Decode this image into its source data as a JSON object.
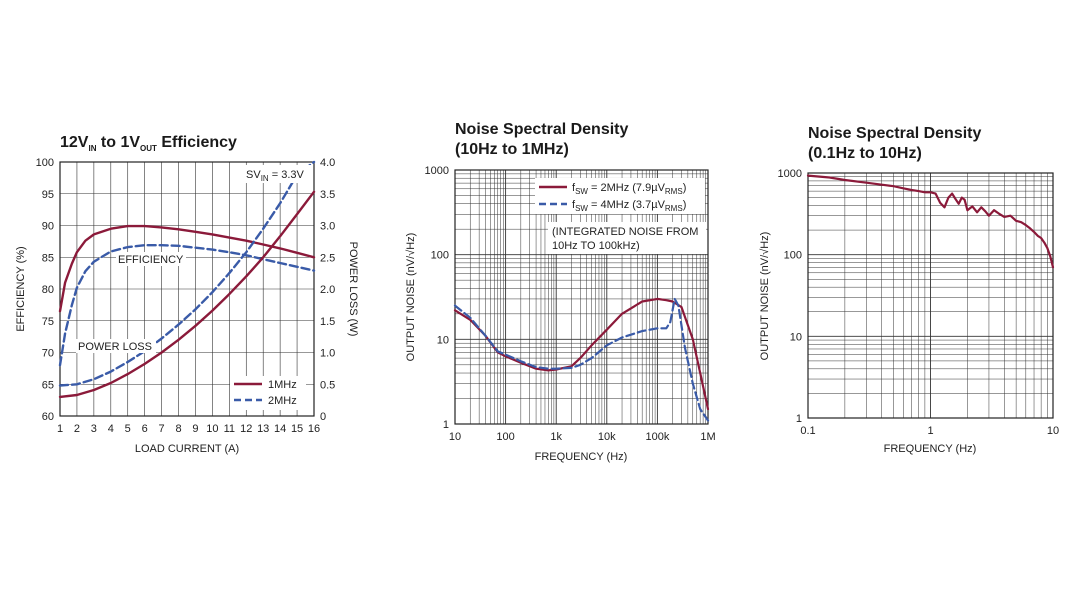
{
  "chart_data": [
    {
      "type": "line",
      "title": {
        "main": "12V",
        "sub_in": "IN",
        "mid": " to 1V",
        "sub_out": "OUT",
        "end": " Efficiency"
      },
      "xlabel": "LOAD CURRENT (A)",
      "ylabel": "EFFICIENCY (%)",
      "y2label": "POWER LOSS (W)",
      "xlim": [
        1,
        16
      ],
      "ylim": [
        60,
        100
      ],
      "y2lim": [
        0,
        4.0
      ],
      "xticks": [
        "1",
        "2",
        "3",
        "4",
        "5",
        "6",
        "7",
        "8",
        "9",
        "10",
        "11",
        "12",
        "13",
        "14",
        "15",
        "16"
      ],
      "yticks": [
        "60",
        "65",
        "70",
        "75",
        "80",
        "85",
        "90",
        "95",
        "100"
      ],
      "y2ticks": [
        "0",
        "0.5",
        "1.0",
        "1.5",
        "2.0",
        "2.5",
        "3.0",
        "3.5",
        "4.0"
      ],
      "grid": true,
      "legend_position": "bottom-right",
      "annotations": {
        "sv_main": "SV",
        "sv_sub": "IN",
        "sv_end": " = 3.3V",
        "efficiency": "EFFICIENCY",
        "power_loss": "POWER LOSS"
      },
      "series": [
        {
          "name": "1MHz",
          "axis": "left",
          "style": "solid",
          "x": [
            1,
            1.3,
            1.7,
            2,
            2.5,
            3,
            4,
            5,
            6,
            7,
            8,
            9,
            10,
            11,
            12,
            13,
            14,
            15,
            16
          ],
          "values": [
            76.5,
            81,
            84,
            85.8,
            87.6,
            88.6,
            89.5,
            89.9,
            89.9,
            89.7,
            89.4,
            89,
            88.6,
            88.1,
            87.6,
            87,
            86.4,
            85.7,
            85
          ]
        },
        {
          "name": "2MHz",
          "axis": "left",
          "style": "dashed",
          "x": [
            1,
            1.3,
            1.7,
            2,
            2.5,
            3,
            4,
            5,
            6,
            7,
            8,
            9,
            10,
            11,
            12,
            13,
            14,
            15,
            16
          ],
          "values": [
            68,
            73,
            77.5,
            80.2,
            82.8,
            84.3,
            85.9,
            86.6,
            86.9,
            86.9,
            86.8,
            86.5,
            86.2,
            85.8,
            85.3,
            84.7,
            84.1,
            83.5,
            82.9
          ]
        },
        {
          "name": "1MHz",
          "axis": "right",
          "style": "solid",
          "x": [
            1,
            2,
            3,
            4,
            5,
            6,
            7,
            8,
            9,
            10,
            11,
            12,
            13,
            14,
            15,
            16
          ],
          "values": [
            0.3,
            0.33,
            0.41,
            0.52,
            0.66,
            0.82,
            1.0,
            1.2,
            1.42,
            1.66,
            1.92,
            2.2,
            2.5,
            2.83,
            3.18,
            3.53
          ]
        },
        {
          "name": "2MHz",
          "axis": "right",
          "style": "dashed",
          "x": [
            1,
            2,
            3,
            4,
            5,
            6,
            7,
            8,
            9,
            10,
            11,
            12,
            13,
            14,
            15,
            16
          ],
          "values": [
            0.48,
            0.5,
            0.58,
            0.7,
            0.85,
            1.02,
            1.22,
            1.44,
            1.68,
            1.95,
            2.25,
            2.58,
            2.95,
            3.35,
            3.8,
            4.28
          ]
        }
      ]
    },
    {
      "type": "line",
      "title_lines": [
        "Noise Spectral Density",
        "(10Hz to 1MHz)"
      ],
      "xlabel": "FREQUENCY (Hz)",
      "ylabel": "OUTPUT NOISE (nV/√Hz)",
      "xscale": "log",
      "yscale": "log",
      "xlim": [
        10,
        1000000
      ],
      "ylim": [
        1,
        1000
      ],
      "xticks": [
        "10",
        "100",
        "1k",
        "10k",
        "100k",
        "1M"
      ],
      "yticks": [
        "1",
        "10",
        "100",
        "1000"
      ],
      "grid": true,
      "legend_position": "top-right",
      "legend": [
        {
          "pre": "f",
          "sub": "SW",
          "mid": " = 2MHz (7.9µV",
          "sub2": "RMS",
          "end": ")"
        },
        {
          "pre": "f",
          "sub": "SW",
          "mid": " = 4MHz (3.7µV",
          "sub2": "RMS",
          "end": ")"
        }
      ],
      "annotation_lines": [
        "(INTEGRATED NOISE FROM",
        "10Hz TO 100kHz)"
      ],
      "series": [
        {
          "style": "solid",
          "x": [
            10,
            20,
            40,
            70,
            100,
            200,
            400,
            700,
            1000,
            2000,
            3000,
            5000,
            10000,
            20000,
            50000,
            100000,
            150000,
            200000,
            300000,
            500000,
            700000,
            1000000
          ],
          "values": [
            22,
            17,
            11,
            7,
            6.3,
            5.3,
            4.5,
            4.3,
            4.4,
            4.8,
            6,
            8.5,
            13,
            20,
            28,
            30,
            29,
            28,
            24,
            10,
            4,
            1.5
          ]
        },
        {
          "style": "dashed",
          "x": [
            10,
            20,
            40,
            70,
            100,
            200,
            400,
            700,
            1000,
            2000,
            3000,
            5000,
            10000,
            20000,
            50000,
            100000,
            150000,
            180000,
            220000,
            260000,
            350000,
            500000,
            700000,
            1000000
          ],
          "values": [
            25,
            18,
            11,
            7.2,
            6.6,
            5.5,
            4.7,
            4.5,
            4.5,
            4.6,
            5,
            6,
            8.5,
            10.5,
            12.5,
            13.5,
            13.5,
            16,
            30,
            25,
            8,
            3,
            1.5,
            1.1
          ]
        }
      ]
    },
    {
      "type": "line",
      "title_lines": [
        "Noise Spectral Density",
        "(0.1Hz to 10Hz)"
      ],
      "xlabel": "FREQUENCY (Hz)",
      "ylabel": "OUTPUT NOISE (nV/√Hz)",
      "xscale": "log",
      "yscale": "log",
      "xlim": [
        0.1,
        10
      ],
      "ylim": [
        1,
        1000
      ],
      "xticks": [
        "0.1",
        "1",
        "10"
      ],
      "yticks": [
        "1",
        "10",
        "100",
        "1000"
      ],
      "grid": true,
      "series": [
        {
          "style": "solid",
          "x": [
            0.1,
            0.15,
            0.2,
            0.3,
            0.4,
            0.5,
            0.6,
            0.7,
            0.8,
            0.9,
            1.0,
            1.1,
            1.2,
            1.3,
            1.4,
            1.5,
            1.6,
            1.7,
            1.8,
            1.9,
            2.0,
            2.2,
            2.4,
            2.6,
            2.8,
            3.0,
            3.3,
            3.6,
            4.0,
            4.5,
            5.0,
            5.5,
            6.0,
            6.5,
            7.0,
            7.5,
            8.0,
            8.5,
            9.0,
            9.5,
            10.0
          ],
          "values": [
            930,
            880,
            820,
            760,
            720,
            690,
            650,
            620,
            600,
            580,
            580,
            560,
            430,
            380,
            500,
            560,
            480,
            420,
            500,
            470,
            350,
            390,
            330,
            380,
            340,
            300,
            350,
            320,
            290,
            300,
            260,
            250,
            230,
            210,
            190,
            170,
            160,
            140,
            120,
            95,
            70
          ]
        }
      ]
    }
  ],
  "colors": {
    "series1": "#8b1a3a",
    "series2": "#3a5ba8"
  }
}
